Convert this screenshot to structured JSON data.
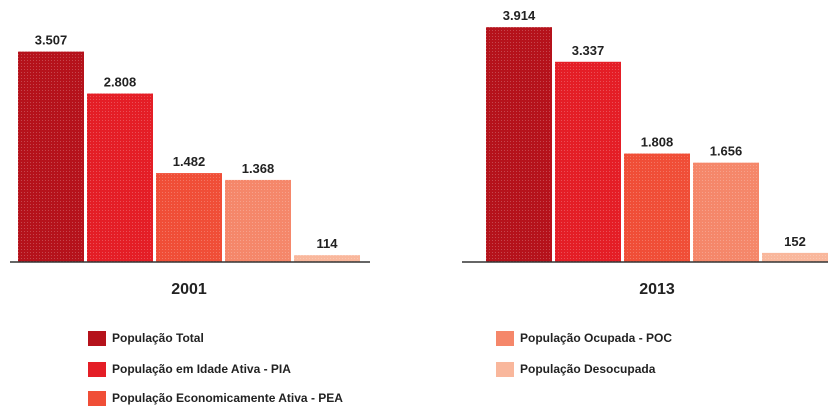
{
  "chart_data": [
    {
      "type": "bar",
      "title": "",
      "xlabel": "2001",
      "ylabel": "",
      "ylim": [
        0,
        4000
      ],
      "grid": false,
      "categories": [
        "População Total",
        "População em Idade Ativa - PIA",
        "População Economicamente Ativa - PEA",
        "População Ocupada - POC",
        "População Desocupada"
      ],
      "values": [
        3507,
        2808,
        1482,
        1368,
        114
      ],
      "value_labels": [
        "3.507",
        "2.808",
        "1.482",
        "1.368",
        "114"
      ]
    },
    {
      "type": "bar",
      "title": "",
      "xlabel": "2013",
      "ylabel": "",
      "ylim": [
        0,
        4000
      ],
      "grid": false,
      "categories": [
        "População Total",
        "População em Idade Ativa - PIA",
        "População Economicamente Ativa - PEA",
        "População Ocupada - POC",
        "População Desocupada"
      ],
      "values": [
        3914,
        3337,
        1808,
        1656,
        152
      ],
      "value_labels": [
        "3.914",
        "3.337",
        "1.808",
        "1.656",
        "152"
      ]
    }
  ],
  "legend": {
    "placement": "bottom",
    "items": [
      {
        "label": "População Total",
        "color": "#b5121b"
      },
      {
        "label": "População em Idade Ativa - PIA",
        "color": "#e41e26"
      },
      {
        "label": "População Economicamente Ativa - PEA",
        "color": "#f04e37"
      },
      {
        "label": "População Ocupada - POC",
        "color": "#f5876a"
      },
      {
        "label": "População Desocupada",
        "color": "#f9b79c"
      }
    ]
  }
}
